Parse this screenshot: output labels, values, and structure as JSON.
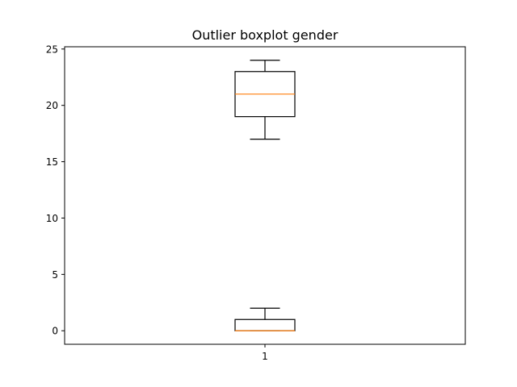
{
  "chart_data": {
    "type": "boxplot",
    "title": "Outlier boxplot gender",
    "xlabel": "",
    "ylabel": "",
    "ylim": [
      -1.2,
      25.2
    ],
    "yticks": [
      0,
      5,
      10,
      15,
      20,
      25
    ],
    "xticks": [
      "1"
    ],
    "grid": false,
    "legend": "none",
    "boxes": [
      {
        "position": 1,
        "whisker_low": 17,
        "q1": 19,
        "median": 21,
        "q3": 23,
        "whisker_high": 24
      },
      {
        "position": 1,
        "whisker_low": 0,
        "q1": 0,
        "median": 0,
        "q3": 1,
        "whisker_high": 2
      }
    ],
    "colors": {
      "box": "#000000",
      "median": "#ff7f0e",
      "axes": "#000000",
      "background": "#ffffff"
    }
  }
}
